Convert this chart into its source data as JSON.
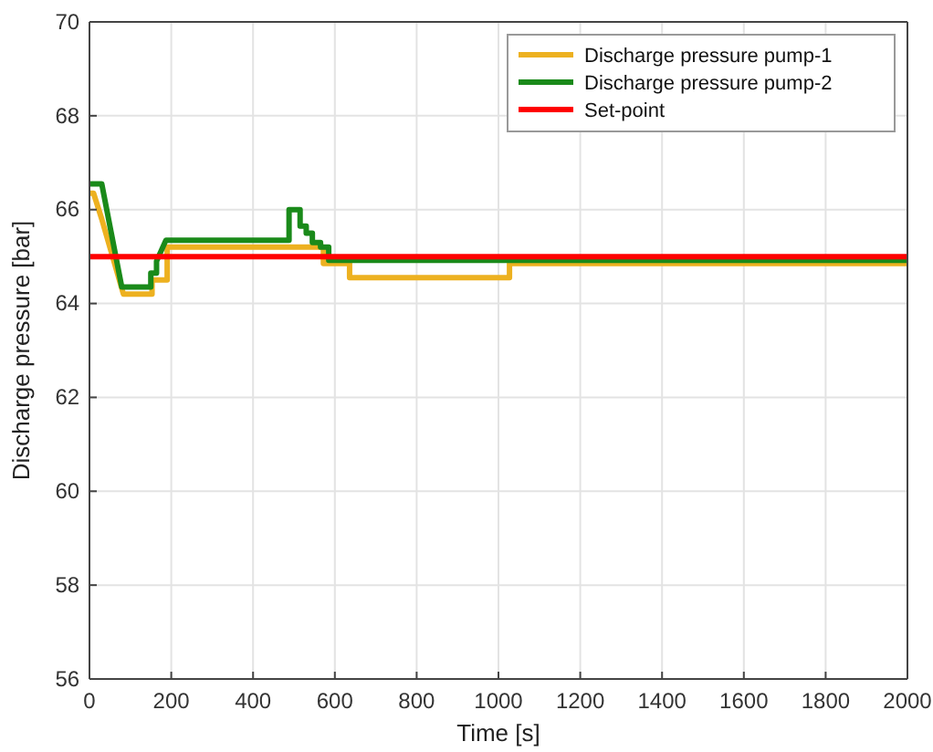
{
  "chart_data": {
    "type": "line",
    "xlabel": "Time [s]",
    "ylabel": "Discharge pressure [bar]",
    "xlim": [
      0,
      2000
    ],
    "xticks": [
      0,
      200,
      400,
      600,
      800,
      1000,
      1200,
      1400,
      1600,
      1800,
      2000
    ],
    "ylim": [
      56,
      70
    ],
    "yticks": [
      56,
      58,
      60,
      62,
      64,
      66,
      68,
      70
    ],
    "grid": true,
    "legend": "top right",
    "line_style": "solid",
    "series": [
      {
        "name": "Discharge pressure pump-1",
        "color": "#edb120",
        "x": [
          0,
          10,
          30,
          83,
          153,
          153,
          190,
          190,
          572,
          572,
          636,
          636,
          1027,
          1027,
          2000
        ],
        "values": [
          66.35,
          66.35,
          65.8,
          64.2,
          64.2,
          64.5,
          64.5,
          65.2,
          65.2,
          64.85,
          64.85,
          64.55,
          64.55,
          64.85,
          64.85
        ]
      },
      {
        "name": "Discharge pressure pump-2",
        "color": "#1a8a1a",
        "x": [
          0,
          30,
          79,
          150,
          150,
          164,
          164,
          187,
          488,
          488,
          515,
          515,
          530,
          530,
          545,
          545,
          565,
          565,
          585,
          585,
          2000
        ],
        "values": [
          66.55,
          66.55,
          64.35,
          64.35,
          64.65,
          64.65,
          64.9,
          65.35,
          65.35,
          66,
          66,
          65.65,
          65.65,
          65.5,
          65.5,
          65.3,
          65.3,
          65.2,
          65.2,
          64.92,
          64.92
        ]
      },
      {
        "name": "Set-point",
        "color": "#ff0000",
        "x": [
          0,
          2000
        ],
        "values": [
          65,
          65
        ]
      }
    ]
  }
}
